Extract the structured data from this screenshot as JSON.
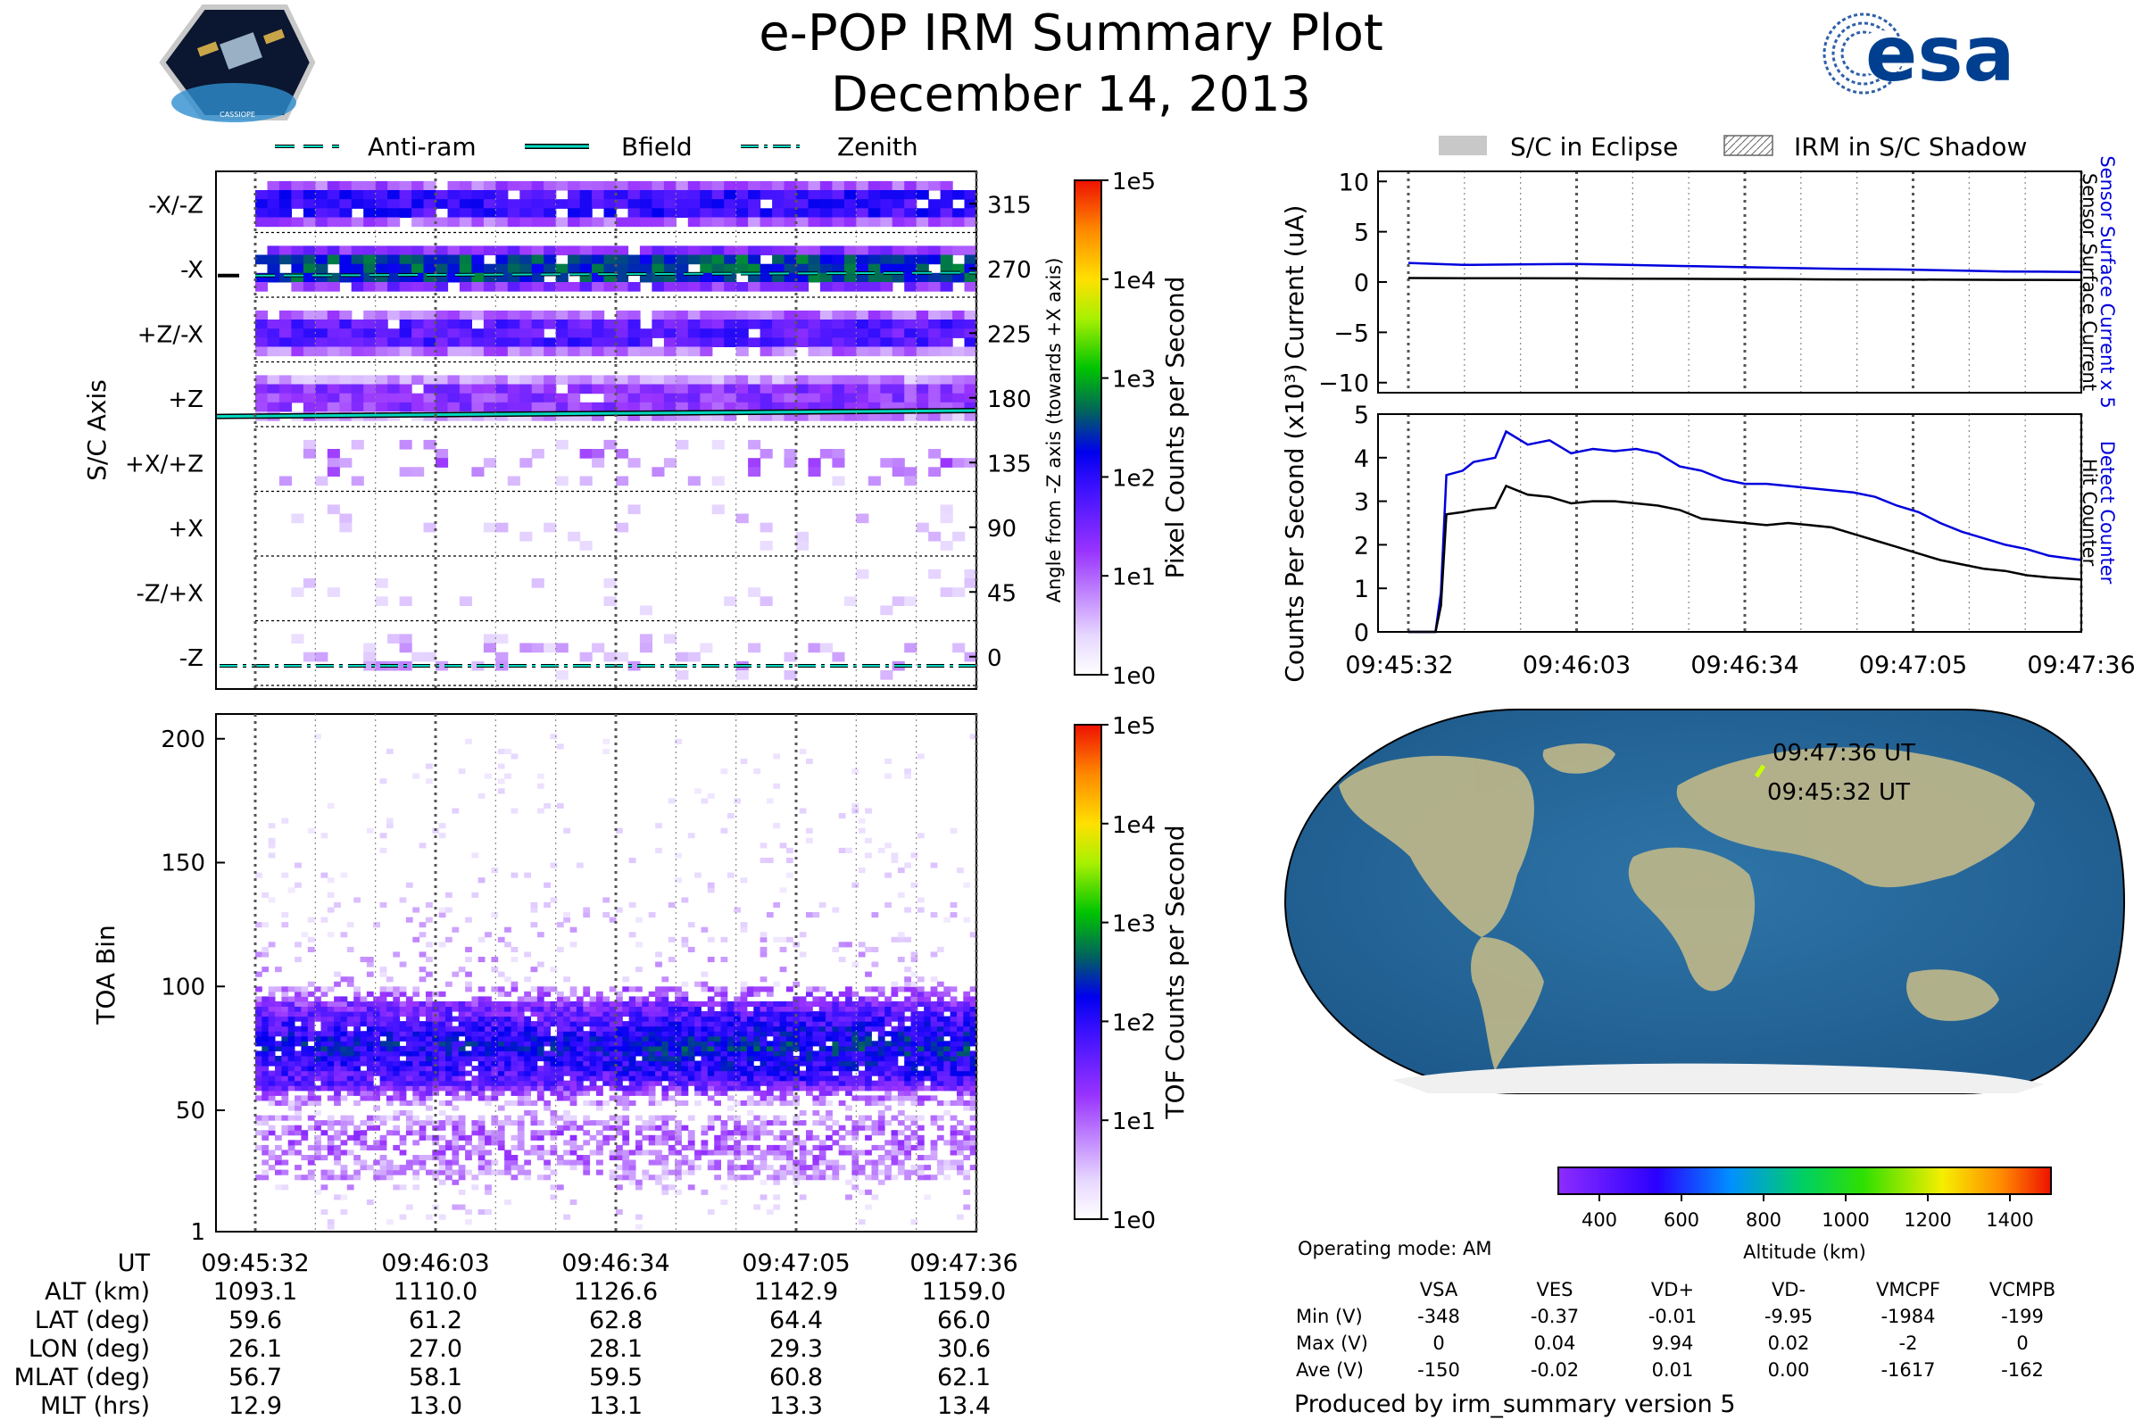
{
  "title": "e-POP IRM Summary Plot",
  "subtitle": "December 14, 2013",
  "logo_left": {
    "label": "CASSIOPE"
  },
  "logo_right": {
    "label": "esa"
  },
  "legend_top_left": [
    {
      "label": "Anti-ram",
      "style": "dashed"
    },
    {
      "label": "Bfield",
      "style": "solid"
    },
    {
      "label": "Zenith",
      "style": "dashdot"
    }
  ],
  "legend_top_right": [
    {
      "label": "S/C in Eclipse"
    },
    {
      "label": "IRM in S/C Shadow"
    }
  ],
  "footer": {
    "operating_mode": "Operating mode: AM",
    "produced_by": "Produced by irm_summary version 5"
  },
  "ephemeris": {
    "row_labels": [
      "UT",
      "ALT (km)",
      "LAT (deg)",
      "LON (deg)",
      "MLAT (deg)",
      "MLT (hrs)"
    ],
    "columns": [
      [
        "09:45:32",
        "1093.1",
        "59.6",
        "26.1",
        "56.7",
        "12.9"
      ],
      [
        "09:46:03",
        "1110.0",
        "61.2",
        "27.0",
        "58.1",
        "13.0"
      ],
      [
        "09:46:34",
        "1126.6",
        "62.8",
        "28.1",
        "59.5",
        "13.1"
      ],
      [
        "09:47:05",
        "1142.9",
        "64.4",
        "29.3",
        "60.8",
        "13.3"
      ],
      [
        "09:47:36",
        "1159.0",
        "66.0",
        "30.6",
        "62.1",
        "13.4"
      ]
    ]
  },
  "voltage_table": {
    "headers": [
      "VSA",
      "VES",
      "VD+",
      "VD-",
      "VMCPF",
      "VCMPB"
    ],
    "rows": [
      {
        "label": "Min (V)",
        "values": [
          "-348",
          "-0.37",
          "-0.01",
          "-9.95",
          "-1984",
          "-199"
        ]
      },
      {
        "label": "Max (V)",
        "values": [
          "0",
          "0.04",
          "9.94",
          "0.02",
          "-2",
          "0"
        ]
      },
      {
        "label": "Ave (V)",
        "values": [
          "-150",
          "-0.02",
          "0.01",
          "0.00",
          "-1617",
          "-162"
        ]
      }
    ]
  },
  "map_labels": {
    "end": "09:47:36 UT",
    "start": "09:45:32 UT"
  },
  "chart_data": [
    {
      "id": "pixel",
      "type": "heatmap",
      "ylabel": "S/C Axis",
      "ylabel_right": "Angle from -Z axis (towards +X axis)",
      "row_labels": [
        "-X/-Z",
        "-X",
        "+Z/-X",
        "+Z",
        "+X/+Z",
        "+X",
        "-Z/+X",
        "-Z"
      ],
      "row_angles": [
        "315",
        "270",
        "225",
        "180",
        "135",
        "90",
        "45",
        "0"
      ],
      "row_levels": [
        1.9,
        2.5,
        1.7,
        1.3,
        0.9,
        0.3,
        0.2,
        0.5
      ],
      "lines": [
        {
          "name": "Anti-ram",
          "angle_start": 266,
          "angle_end": 268
        },
        {
          "name": "Bfield",
          "angle_start": 170,
          "angle_end": 174
        },
        {
          "name": "Zenith",
          "angle_start": 0,
          "angle_end": 0
        }
      ],
      "colorbar": {
        "label": "Pixel Counts per Second",
        "ticks": [
          "1e0",
          "1e1",
          "1e2",
          "1e3",
          "1e4",
          "1e5"
        ]
      }
    },
    {
      "id": "toa",
      "type": "heatmap",
      "ylabel": "TOA Bin",
      "ylim": [
        1,
        210
      ],
      "yticks": [
        "1",
        "50",
        "100",
        "150",
        "200"
      ],
      "profile": [
        {
          "bin": 30,
          "log_counts": 0.9
        },
        {
          "bin": 40,
          "log_counts": 1.0
        },
        {
          "bin": 50,
          "log_counts": 0.5
        },
        {
          "bin": 60,
          "log_counts": 1.6
        },
        {
          "bin": 75,
          "log_counts": 2.2
        },
        {
          "bin": 90,
          "log_counts": 1.5
        },
        {
          "bin": 100,
          "log_counts": 0.6
        },
        {
          "bin": 150,
          "log_counts": 0.1
        }
      ],
      "colorbar": {
        "label": "TOF Counts per Second",
        "ticks": [
          "1e0",
          "1e1",
          "1e2",
          "1e3",
          "1e4",
          "1e5"
        ]
      }
    },
    {
      "id": "current",
      "type": "line",
      "ylabel": "Current (uA)",
      "ylim": [
        -11,
        11
      ],
      "yticks": [
        "10",
        "5",
        "0",
        "−5",
        "−10"
      ],
      "x": [
        0,
        10,
        20,
        30,
        40,
        50,
        60,
        70,
        80,
        90,
        100,
        110,
        124
      ],
      "series": [
        {
          "name": "Sensor Surface Current x 5",
          "color": "#0000dd",
          "values": [
            1.9,
            1.7,
            1.75,
            1.8,
            1.7,
            1.6,
            1.5,
            1.4,
            1.3,
            1.25,
            1.15,
            1.05,
            1.0
          ]
        },
        {
          "name": "Sensor Surface Current",
          "color": "#000000",
          "values": [
            0.4,
            0.37,
            0.37,
            0.36,
            0.34,
            0.32,
            0.3,
            0.28,
            0.26,
            0.25,
            0.23,
            0.21,
            0.2
          ]
        }
      ]
    },
    {
      "id": "counts",
      "type": "line",
      "ylabel": "Counts Per Second (x10³)",
      "ylim": [
        0,
        5
      ],
      "yticks": [
        "5",
        "4",
        "3",
        "2",
        "1",
        "0"
      ],
      "xticks": [
        "09:45:32",
        "09:46:03",
        "09:46:34",
        "09:47:05",
        "09:47:36"
      ],
      "x": [
        0,
        5,
        6,
        7,
        10,
        12,
        16,
        18,
        22,
        26,
        30,
        34,
        38,
        42,
        46,
        50,
        54,
        58,
        62,
        66,
        70,
        74,
        78,
        82,
        86,
        90,
        94,
        98,
        102,
        106,
        110,
        114,
        118,
        124
      ],
      "series": [
        {
          "name": "Detect Counter",
          "color": "#0000dd",
          "values": [
            0,
            0,
            0.9,
            3.6,
            3.7,
            3.9,
            4.0,
            4.6,
            4.3,
            4.4,
            4.1,
            4.2,
            4.15,
            4.2,
            4.1,
            3.8,
            3.7,
            3.5,
            3.4,
            3.4,
            3.35,
            3.3,
            3.25,
            3.2,
            3.1,
            2.9,
            2.75,
            2.5,
            2.3,
            2.15,
            2.0,
            1.9,
            1.75,
            1.65
          ]
        },
        {
          "name": "Hit Counter",
          "color": "#000000",
          "values": [
            0,
            0,
            0.6,
            2.7,
            2.75,
            2.8,
            2.85,
            3.35,
            3.15,
            3.1,
            2.95,
            3.0,
            3.0,
            2.95,
            2.9,
            2.8,
            2.6,
            2.55,
            2.5,
            2.45,
            2.5,
            2.45,
            2.4,
            2.25,
            2.1,
            1.95,
            1.8,
            1.65,
            1.55,
            1.45,
            1.4,
            1.3,
            1.25,
            1.2
          ]
        }
      ]
    }
  ],
  "altitude_colorbar": {
    "label": "Altitude (km)",
    "ticks": [
      "400",
      "600",
      "800",
      "1000",
      "1200",
      "1400"
    ],
    "range": [
      300,
      1500
    ]
  }
}
